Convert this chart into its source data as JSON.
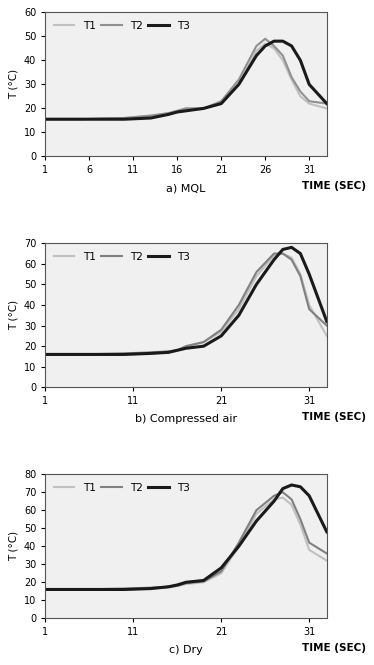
{
  "panels": [
    {
      "title": "a) MQL",
      "ylim": [
        0,
        60
      ],
      "yticks": [
        0,
        10,
        20,
        30,
        40,
        50,
        60
      ],
      "xticks": [
        1,
        6,
        11,
        16,
        21,
        26,
        31
      ],
      "ylabel": "T (°C)",
      "series": [
        {
          "label": "T1",
          "color": "#c0c0c0",
          "lw": 1.5,
          "x": [
            1,
            5,
            10,
            13,
            15,
            16,
            17,
            19,
            21,
            23,
            25,
            26,
            27,
            28,
            29,
            30,
            31,
            33
          ],
          "y": [
            15.5,
            15.5,
            16,
            17,
            18,
            19,
            20,
            20,
            22,
            30,
            44,
            47,
            45,
            40,
            32,
            25,
            22,
            20
          ]
        },
        {
          "label": "T2",
          "color": "#909090",
          "lw": 1.5,
          "x": [
            1,
            5,
            10,
            13,
            15,
            16,
            17,
            19,
            21,
            23,
            25,
            26,
            27,
            28,
            29,
            30,
            31,
            33
          ],
          "y": [
            15.5,
            15.5,
            16,
            17,
            18,
            19,
            20,
            20,
            23,
            32,
            46,
            49,
            46,
            42,
            33,
            27,
            23,
            22
          ]
        },
        {
          "label": "T3",
          "color": "#1a1a1a",
          "lw": 2.2,
          "x": [
            1,
            5,
            10,
            13,
            15,
            16,
            17,
            19,
            21,
            23,
            25,
            26,
            27,
            28,
            29,
            30,
            31,
            33
          ],
          "y": [
            15.5,
            15.5,
            15.5,
            16,
            17.5,
            18.5,
            19,
            20,
            22,
            30,
            42,
            46,
            48,
            48,
            46,
            40,
            30,
            22
          ]
        }
      ]
    },
    {
      "title": "b) Compressed air",
      "ylim": [
        0,
        70
      ],
      "yticks": [
        0,
        10,
        20,
        30,
        40,
        50,
        60,
        70
      ],
      "xticks": [
        1,
        11,
        21,
        31
      ],
      "ylabel": "T (°C)",
      "series": [
        {
          "label": "T1",
          "color": "#c0c0c0",
          "lw": 1.5,
          "x": [
            1,
            5,
            10,
            13,
            15,
            16,
            17,
            19,
            21,
            23,
            25,
            27,
            28,
            29,
            30,
            31,
            33
          ],
          "y": [
            16,
            16,
            16,
            16.5,
            17,
            18,
            20,
            22,
            27,
            38,
            54,
            64,
            65,
            63,
            55,
            40,
            25
          ]
        },
        {
          "label": "T2",
          "color": "#808080",
          "lw": 1.5,
          "x": [
            1,
            5,
            10,
            13,
            15,
            16,
            17,
            19,
            21,
            23,
            25,
            27,
            28,
            29,
            30,
            31,
            33
          ],
          "y": [
            16,
            16,
            16.5,
            17,
            17.5,
            18,
            20,
            22,
            28,
            40,
            56,
            65,
            65,
            62,
            54,
            38,
            30
          ]
        },
        {
          "label": "T3",
          "color": "#1a1a1a",
          "lw": 2.2,
          "x": [
            1,
            5,
            10,
            13,
            15,
            16,
            17,
            19,
            21,
            23,
            25,
            27,
            28,
            29,
            30,
            31,
            33
          ],
          "y": [
            16,
            16,
            16,
            16.5,
            17,
            18,
            19,
            20,
            25,
            35,
            50,
            62,
            67,
            68,
            65,
            55,
            32
          ]
        }
      ]
    },
    {
      "title": "c) Dry",
      "ylim": [
        0,
        80
      ],
      "yticks": [
        0,
        10,
        20,
        30,
        40,
        50,
        60,
        70,
        80
      ],
      "xticks": [
        1,
        11,
        21,
        31
      ],
      "ylabel": "T (°C)",
      "series": [
        {
          "label": "T1",
          "color": "#c0c0c0",
          "lw": 1.5,
          "x": [
            1,
            5,
            10,
            13,
            15,
            16,
            17,
            19,
            21,
            23,
            25,
            27,
            28,
            29,
            30,
            31,
            33
          ],
          "y": [
            16,
            16,
            16,
            16.5,
            17,
            18,
            19,
            20,
            25,
            40,
            58,
            66,
            67,
            63,
            52,
            38,
            32
          ]
        },
        {
          "label": "T2",
          "color": "#808080",
          "lw": 1.5,
          "x": [
            1,
            5,
            10,
            13,
            15,
            16,
            17,
            19,
            21,
            23,
            25,
            27,
            28,
            29,
            30,
            31,
            33
          ],
          "y": [
            16,
            16,
            16.5,
            17,
            17.5,
            18,
            19.5,
            20.5,
            26,
            42,
            60,
            68,
            70,
            66,
            55,
            42,
            36
          ]
        },
        {
          "label": "T3",
          "color": "#1a1a1a",
          "lw": 2.2,
          "x": [
            1,
            5,
            10,
            13,
            15,
            16,
            17,
            19,
            21,
            23,
            25,
            27,
            28,
            29,
            30,
            31,
            33
          ],
          "y": [
            16,
            16,
            16,
            16.5,
            17.5,
            18.5,
            20,
            21,
            28,
            40,
            54,
            65,
            72,
            74,
            73,
            68,
            48
          ]
        }
      ]
    }
  ],
  "bg_color": "#f0f0f0",
  "xlim": [
    1,
    33
  ],
  "legend_fontsize": 7.5,
  "axis_label_fontsize": 7.5,
  "tick_fontsize": 7,
  "title_fontsize": 8,
  "time_sec_label": "TIME (SEC)"
}
